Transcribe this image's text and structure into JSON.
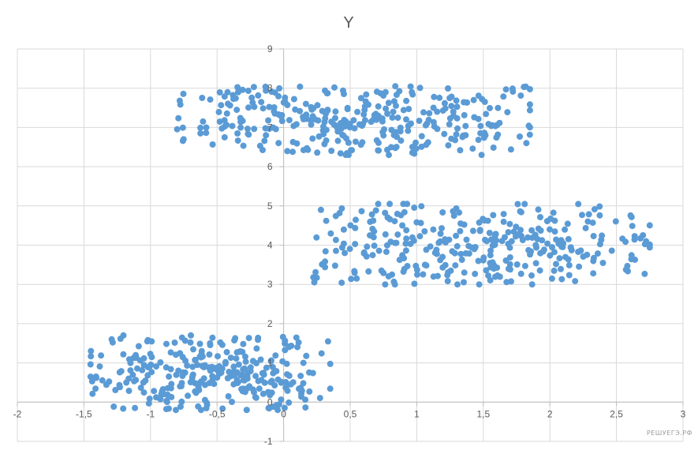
{
  "chart_data": {
    "type": "scatter",
    "title": "Y",
    "xlabel": "",
    "ylabel": "",
    "xlim": [
      -2,
      3
    ],
    "ylim": [
      -1,
      9
    ],
    "x_ticks": [
      -2,
      -1.5,
      -1,
      -0.5,
      0,
      0.5,
      1,
      1.5,
      2,
      2.5,
      3
    ],
    "y_ticks": [
      -1,
      0,
      1,
      2,
      3,
      4,
      5,
      6,
      7,
      8,
      9
    ],
    "x_tick_labels": [
      "-2",
      "-1,5",
      "-1",
      "-0,5",
      "0",
      "0,5",
      "1",
      "1,5",
      "2",
      "2,5",
      "3"
    ],
    "y_tick_labels": [
      "-1",
      "0",
      "1",
      "2",
      "3",
      "4",
      "5",
      "6",
      "7",
      "8",
      "9"
    ],
    "grid": true,
    "point_color": "#5b9bd5",
    "clusters": [
      {
        "x_range": [
          -1.45,
          0.35
        ],
        "y_range": [
          -0.2,
          1.7
        ],
        "center": [
          -0.55,
          0.8
        ],
        "count": 300
      },
      {
        "x_range": [
          0.2,
          2.75
        ],
        "y_range": [
          3.0,
          5.05
        ],
        "center": [
          1.45,
          4.0
        ],
        "count": 320
      },
      {
        "x_range": [
          -0.8,
          1.85
        ],
        "y_range": [
          6.3,
          8.05
        ],
        "center": [
          0.55,
          7.2
        ],
        "count": 330
      }
    ]
  },
  "watermark": "РЕШУЕГЭ.РФ"
}
